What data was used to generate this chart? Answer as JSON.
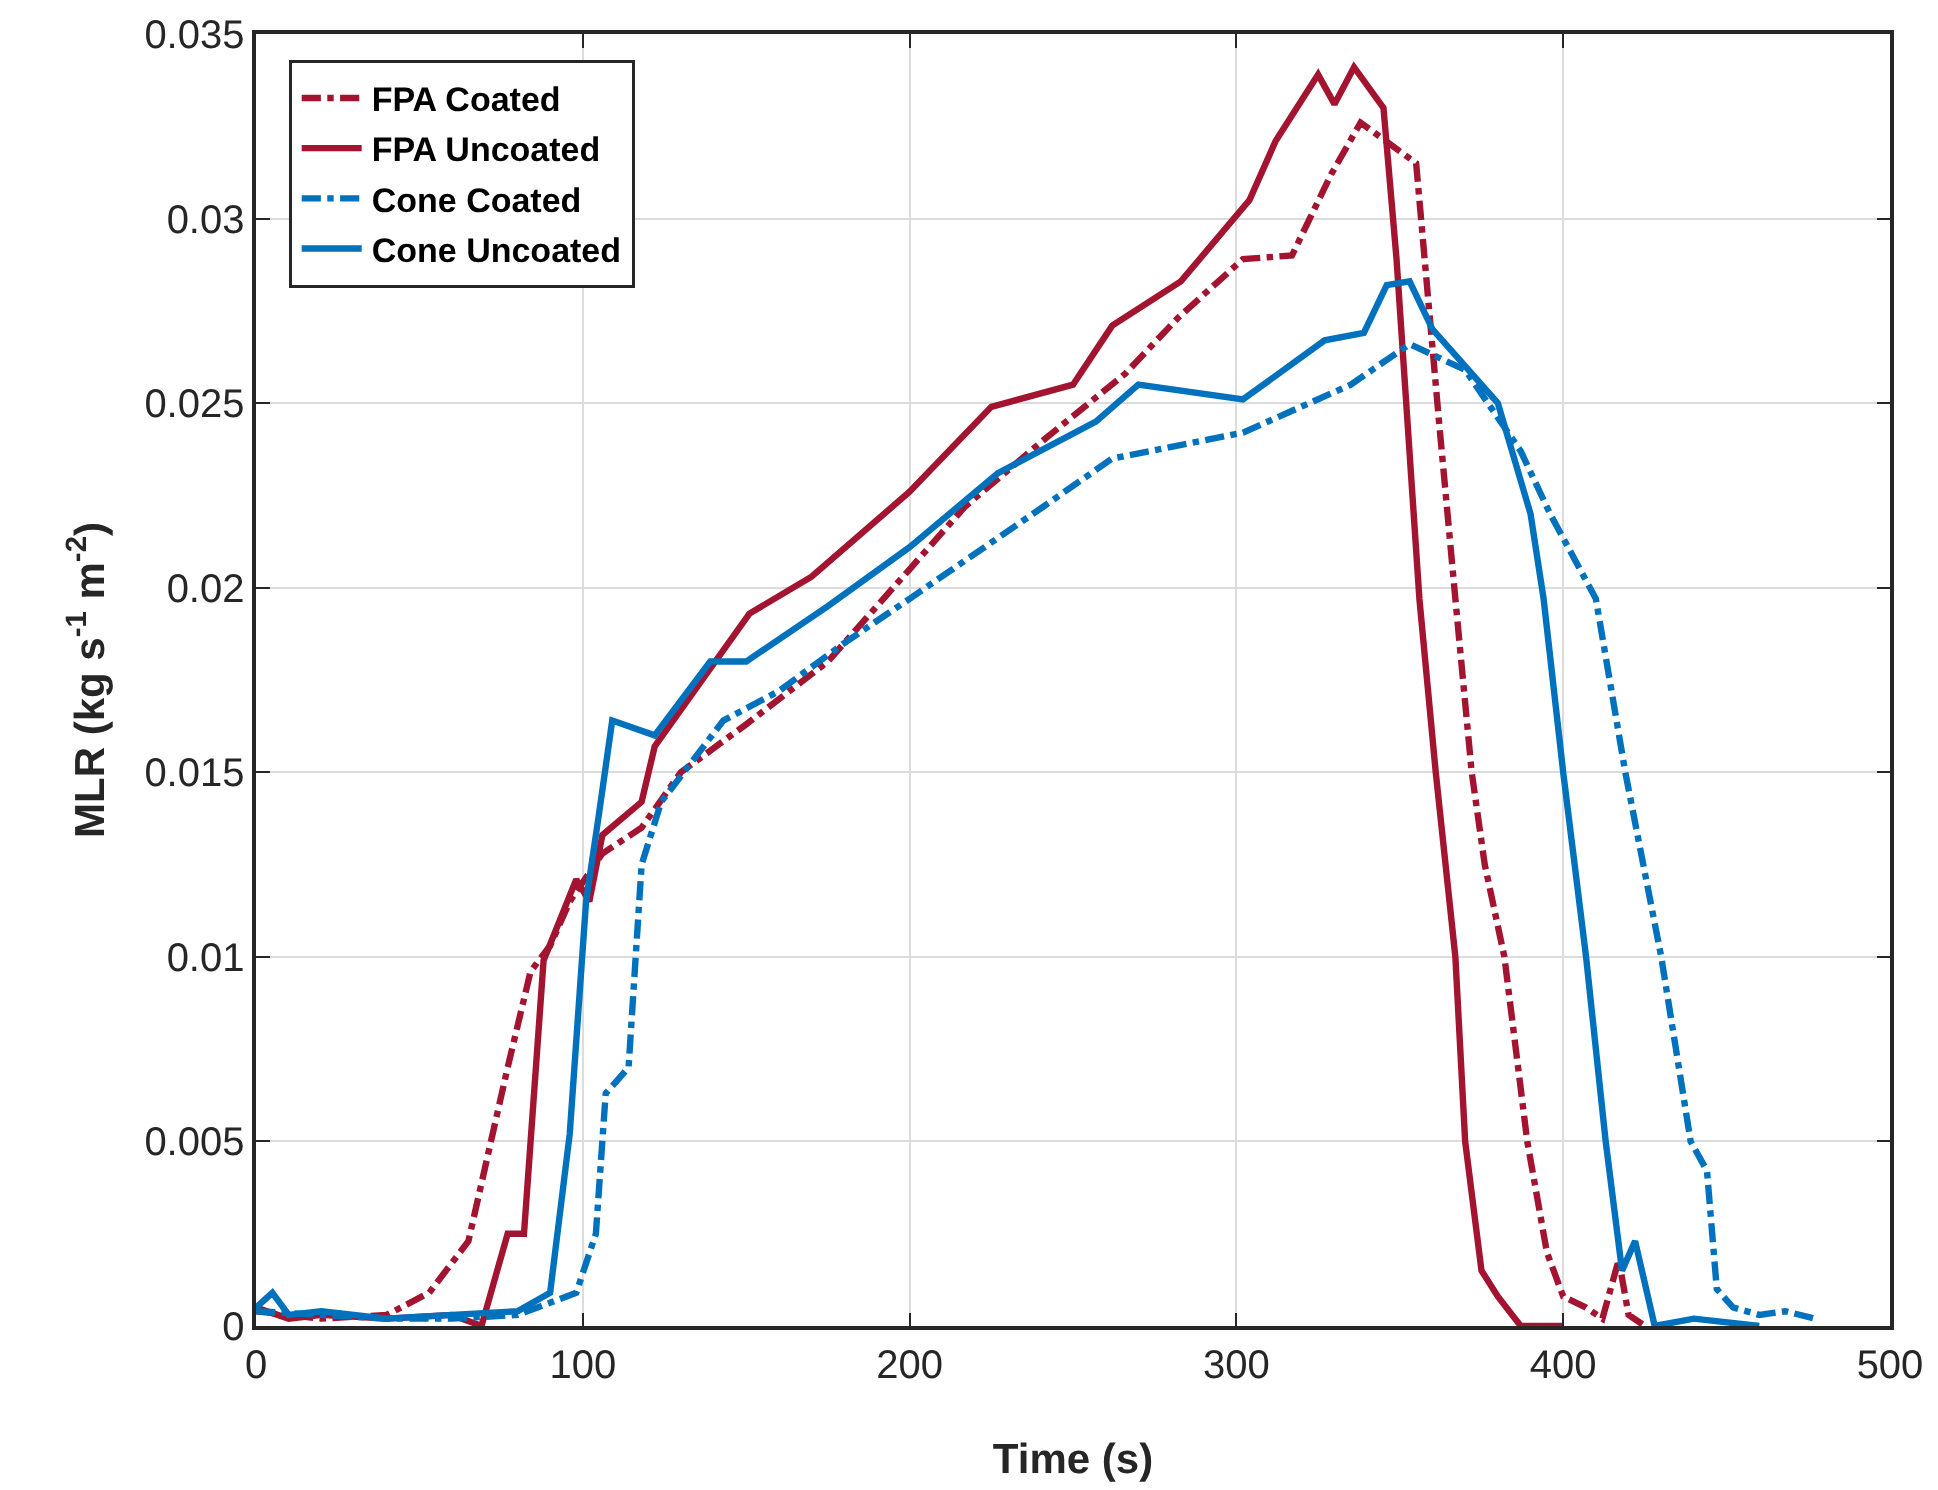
{
  "chart_data": {
    "type": "line",
    "xlabel": "Time (s)",
    "ylabel": "MLR (kg s$^{-1}$ m$^{-2}$)",
    "xlim": [
      0,
      500
    ],
    "ylim": [
      0,
      0.035
    ],
    "xticks": [
      0,
      100,
      200,
      300,
      400,
      500
    ],
    "yticks": [
      0,
      0.005,
      0.01,
      0.015,
      0.02,
      0.025,
      0.03,
      0.035
    ],
    "grid": true,
    "legend": "top left",
    "marker": "none",
    "series": [
      {
        "name": "FPA Coated",
        "color": "#a2142f",
        "line_style": "dashdot",
        "x": [
          0,
          20,
          40,
          53,
          65,
          77,
          84,
          90,
          96,
          106,
          118,
          130,
          150,
          175,
          200,
          217,
          241,
          266,
          282,
          302,
          317,
          329,
          338,
          355,
          362,
          367,
          372,
          376,
          382,
          389,
          395,
          400,
          407,
          412,
          417,
          420,
          425
        ],
        "values": [
          0.0004,
          0.0002,
          0.0003,
          0.0009,
          0.0023,
          0.007,
          0.0096,
          0.0103,
          0.0115,
          0.0128,
          0.0135,
          0.015,
          0.0163,
          0.018,
          0.0205,
          0.0222,
          0.024,
          0.0258,
          0.0273,
          0.0289,
          0.029,
          0.0312,
          0.0326,
          0.0315,
          0.0245,
          0.0197,
          0.015,
          0.0125,
          0.01,
          0.005,
          0.002,
          0.0008,
          0.0005,
          0.0002,
          0.0018,
          0.0003,
          0
        ]
      },
      {
        "name": "FPA Uncoated",
        "color": "#a2142f",
        "line_style": "solid",
        "x": [
          0,
          10,
          20,
          40,
          60,
          69,
          77,
          82,
          88,
          98,
          102,
          106,
          118,
          122,
          151,
          170,
          200,
          225,
          250,
          262,
          283,
          304,
          312,
          325,
          330,
          336,
          345,
          349,
          356,
          361,
          367,
          370,
          375,
          380,
          387,
          395,
          400
        ],
        "values": [
          0.0005,
          0.0002,
          0.0003,
          0.0002,
          0.0003,
          0,
          0.0025,
          0.0025,
          0.0099,
          0.0121,
          0.0115,
          0.0133,
          0.0142,
          0.0157,
          0.0193,
          0.0203,
          0.0226,
          0.0249,
          0.0255,
          0.0271,
          0.0283,
          0.0305,
          0.0321,
          0.0339,
          0.0331,
          0.0341,
          0.033,
          0.0289,
          0.0197,
          0.015,
          0.01,
          0.005,
          0.0015,
          0.0008,
          0,
          0,
          0
        ]
      },
      {
        "name": "Cone Coated",
        "color": "#0072bd",
        "line_style": "dashdot",
        "x": [
          0,
          20,
          40,
          60,
          80,
          98,
          104,
          107,
          114,
          118,
          124,
          143,
          160,
          180,
          200,
          241,
          262,
          302,
          335,
          353,
          370,
          387,
          396,
          410,
          419,
          430,
          439,
          444,
          447,
          452,
          460,
          468,
          477
        ],
        "values": [
          0.0004,
          0.0003,
          0.0002,
          0.0002,
          0.0003,
          0.0009,
          0.0025,
          0.0063,
          0.007,
          0.0125,
          0.0142,
          0.0164,
          0.0172,
          0.0185,
          0.0197,
          0.0222,
          0.0235,
          0.0242,
          0.0255,
          0.0266,
          0.0259,
          0.0237,
          0.022,
          0.0197,
          0.015,
          0.01,
          0.005,
          0.0042,
          0.001,
          0.0005,
          0.0003,
          0.0004,
          0.0002
        ]
      },
      {
        "name": "Cone Uncoated",
        "color": "#0072bd",
        "line_style": "solid",
        "x": [
          0,
          5,
          10,
          20,
          40,
          60,
          80,
          90,
          96,
          101,
          105,
          109,
          122,
          139,
          150,
          175,
          200,
          227,
          257,
          270,
          302,
          327,
          339,
          346,
          353,
          360,
          370,
          380,
          390,
          394,
          400,
          407,
          413,
          418,
          422,
          428,
          440,
          460
        ],
        "values": [
          0.0005,
          0.0009,
          0.0003,
          0.0004,
          0.0002,
          0.0003,
          0.0004,
          0.0009,
          0.0052,
          0.0115,
          0.0139,
          0.0164,
          0.016,
          0.018,
          0.018,
          0.0195,
          0.0211,
          0.0231,
          0.0245,
          0.0255,
          0.0251,
          0.0267,
          0.0269,
          0.0282,
          0.0283,
          0.027,
          0.026,
          0.025,
          0.022,
          0.0197,
          0.015,
          0.01,
          0.005,
          0.0015,
          0.0023,
          0,
          0.0002,
          0
        ]
      }
    ]
  }
}
